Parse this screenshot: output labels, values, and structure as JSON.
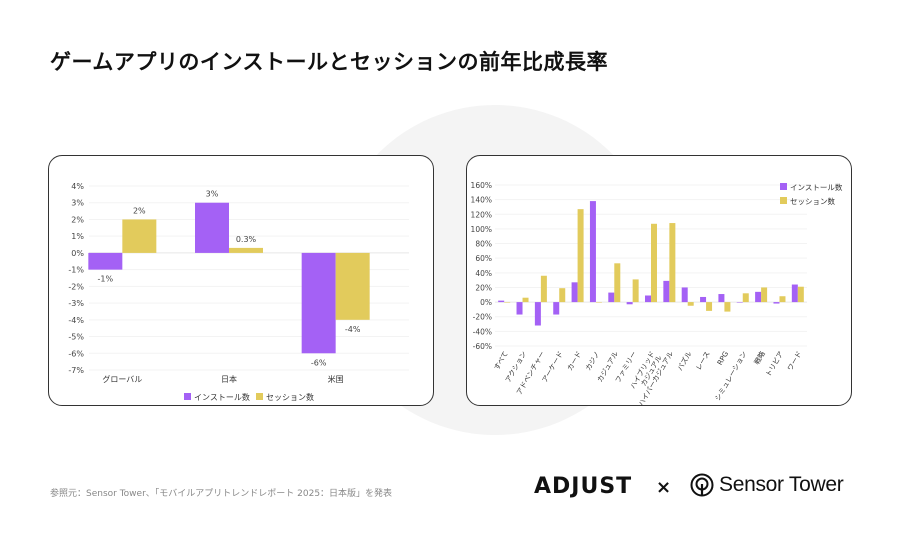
{
  "title": "ゲームアプリのインストールとセッションの前年比成長率",
  "footer": {
    "source": "参照元：Sensor Tower、「モバイルアプリトレンドレポート 2025：日本版」を発表",
    "logo_adjust": "ADJUST",
    "times": "×",
    "logo_sensortower": "Sensor Tower"
  },
  "colors": {
    "install": "#a461f5",
    "session": "#e2cb5c"
  },
  "chart_data": [
    {
      "type": "bar",
      "title": "",
      "categories": [
        "グローバル",
        "日本",
        "米国"
      ],
      "series": [
        {
          "name": "インストール数",
          "values": [
            -1,
            3,
            -6
          ],
          "labels": [
            "-1%",
            "3%",
            "-6%"
          ]
        },
        {
          "name": "セッション数",
          "values": [
            2,
            0.3,
            -4
          ],
          "labels": [
            "2%",
            "0.3%",
            "-4%"
          ]
        }
      ],
      "ylim": [
        -7,
        4
      ],
      "yticks": [
        "4%",
        "3%",
        "2%",
        "1%",
        "0%",
        "-1%",
        "-2%",
        "-3%",
        "-4%",
        "-5%",
        "-6%",
        "-7%"
      ],
      "legend": "bottom",
      "grid": true
    },
    {
      "type": "bar",
      "title": "",
      "categories": [
        "すべて",
        "アクション",
        "アドベンチャー",
        "アーケード",
        "カード",
        "カジノ",
        "カジュアル",
        "ファミリー",
        "ハイブリッド\nカジュアル",
        "ハイパーカジュアル",
        "パズル",
        "レース",
        "RPG",
        "シミュレーション",
        "戦略",
        "トリビア",
        "ワード"
      ],
      "series": [
        {
          "name": "インストール数",
          "values": [
            2,
            -17,
            -32,
            -17,
            27,
            138,
            13,
            -3,
            9,
            29,
            20,
            7,
            11,
            0,
            14,
            -2,
            24
          ]
        },
        {
          "name": "セッション数",
          "values": [
            0,
            6,
            36,
            19,
            127,
            0,
            53,
            31,
            107,
            108,
            -5,
            -12,
            -13,
            12,
            20,
            8,
            21
          ]
        }
      ],
      "ylim": [
        -60,
        160
      ],
      "yticks": [
        "160%",
        "140%",
        "120%",
        "100%",
        "80%",
        "60%",
        "40%",
        "20%",
        "0%",
        "-20%",
        "-40%",
        "-60%"
      ],
      "legend": "top-right",
      "grid": true
    }
  ]
}
